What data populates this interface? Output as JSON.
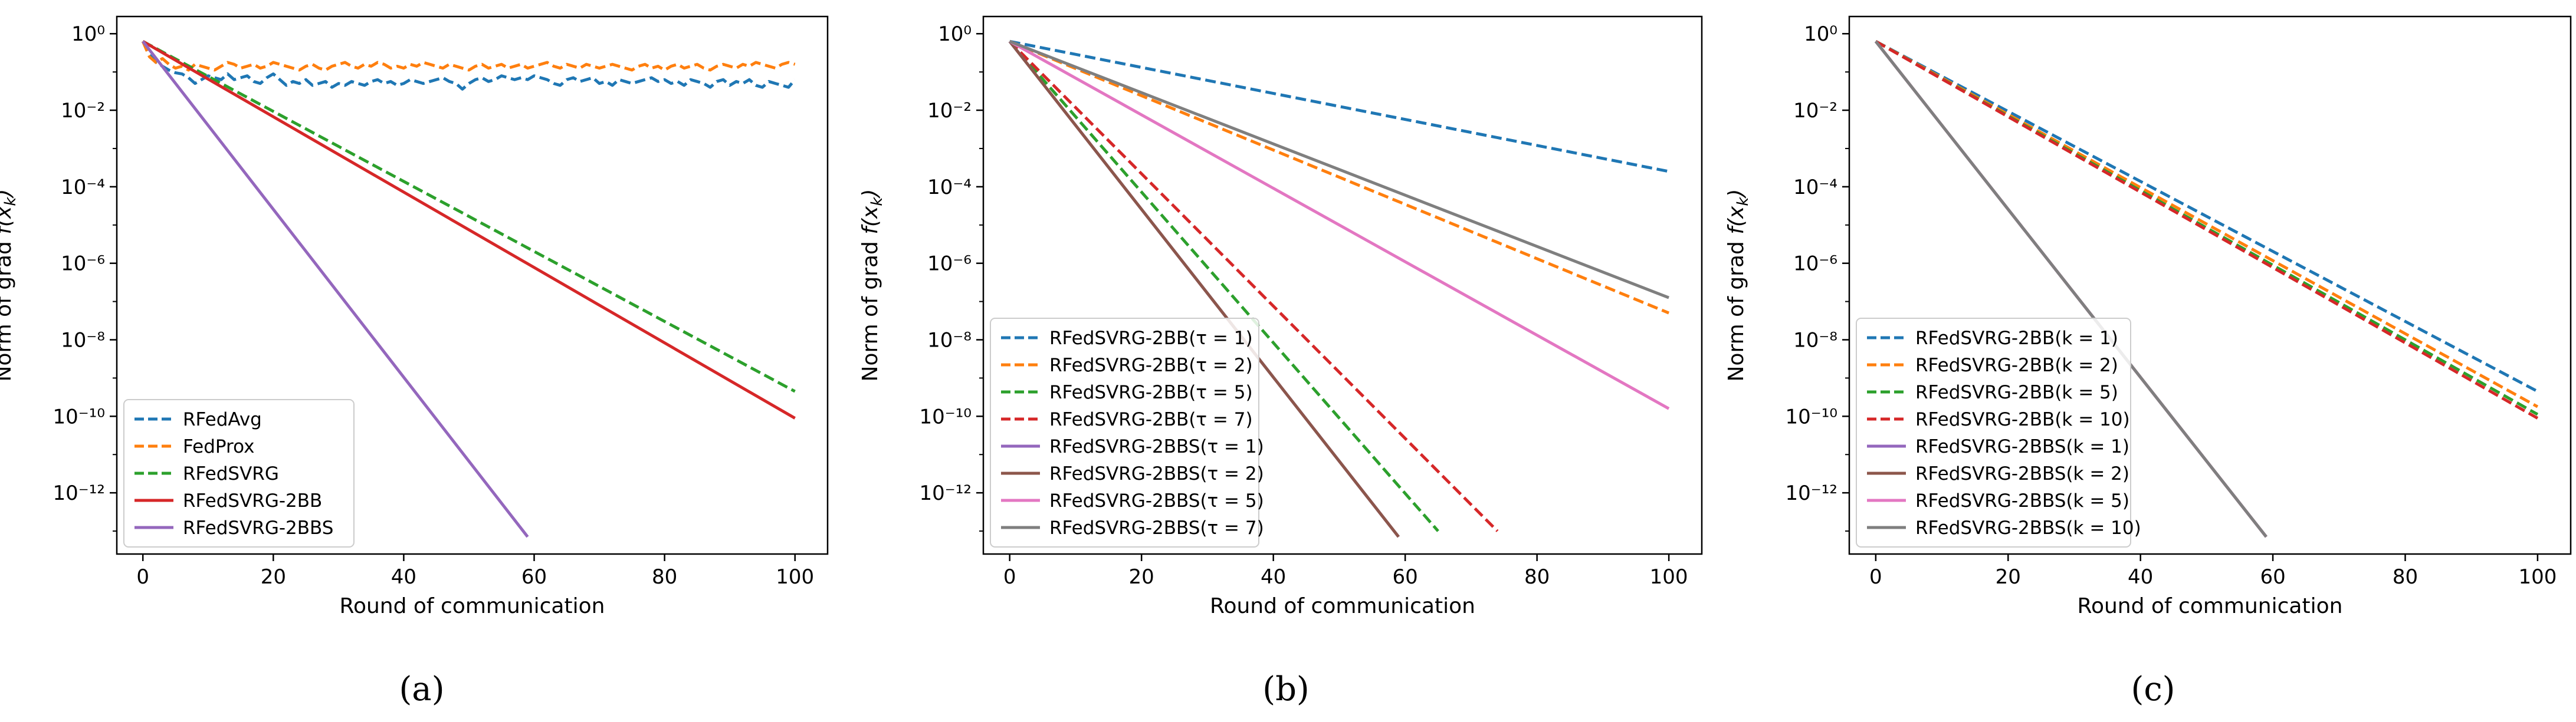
{
  "chart_data": [
    {
      "type": "line",
      "panel_label": "(a)",
      "xlabel": "Round of communication",
      "ylabel": "Norm of grad f(x_k)",
      "ylabel_parts": {
        "base": "Norm of grad ",
        "math": "f(x",
        "sub": "k",
        "close": ")"
      },
      "xlim": [
        -4,
        105
      ],
      "ylim_log10": [
        -13.6,
        0.45
      ],
      "yscale": "log",
      "x_ticks": [
        0,
        20,
        40,
        60,
        80,
        100
      ],
      "y_tick_exponents": [
        0,
        -2,
        -4,
        -6,
        -8,
        -10,
        -12
      ],
      "legend_loc": "lower-left",
      "series": [
        {
          "name": "RFedAvg",
          "color": "#1f77b4",
          "dash": true,
          "x": [
            0,
            1,
            2,
            3,
            4,
            5,
            6,
            7,
            8,
            9,
            10,
            11,
            12,
            13,
            14,
            15,
            16,
            17,
            18,
            19,
            20,
            21,
            22,
            23,
            24,
            25,
            26,
            27,
            28,
            29,
            30,
            31,
            32,
            33,
            34,
            35,
            36,
            37,
            38,
            39,
            40,
            41,
            42,
            43,
            44,
            45,
            46,
            47,
            48,
            49,
            50,
            51,
            52,
            53,
            54,
            55,
            56,
            57,
            58,
            59,
            60,
            61,
            62,
            63,
            64,
            65,
            66,
            67,
            68,
            69,
            70,
            71,
            72,
            73,
            74,
            75,
            76,
            77,
            78,
            79,
            80,
            81,
            82,
            83,
            84,
            85,
            86,
            87,
            88,
            89,
            90,
            91,
            92,
            93,
            94,
            95,
            96,
            97,
            98,
            99,
            100
          ],
          "log10y": [
            -0.2,
            -0.55,
            -0.75,
            -0.85,
            -0.95,
            -1.02,
            -1.05,
            -1.15,
            -1.3,
            -1.2,
            -1.1,
            -1.15,
            -1.2,
            -1.05,
            -1.2,
            -1.15,
            -1.1,
            -1.25,
            -1.3,
            -1.15,
            -1.05,
            -1.2,
            -1.35,
            -1.25,
            -1.3,
            -1.2,
            -1.35,
            -1.3,
            -1.25,
            -1.4,
            -1.3,
            -1.35,
            -1.25,
            -1.3,
            -1.35,
            -1.25,
            -1.2,
            -1.3,
            -1.25,
            -1.35,
            -1.3,
            -1.2,
            -1.25,
            -1.3,
            -1.25,
            -1.2,
            -1.15,
            -1.25,
            -1.3,
            -1.45,
            -1.3,
            -1.2,
            -1.15,
            -1.25,
            -1.2,
            -1.1,
            -1.15,
            -1.2,
            -1.15,
            -1.2,
            -1.1,
            -1.15,
            -1.2,
            -1.3,
            -1.35,
            -1.2,
            -1.15,
            -1.25,
            -1.2,
            -1.15,
            -1.3,
            -1.25,
            -1.35,
            -1.2,
            -1.25,
            -1.3,
            -1.25,
            -1.2,
            -1.15,
            -1.25,
            -1.2,
            -1.3,
            -1.25,
            -1.35,
            -1.2,
            -1.25,
            -1.3,
            -1.4,
            -1.25,
            -1.2,
            -1.35,
            -1.25,
            -1.3,
            -1.2,
            -1.35,
            -1.4,
            -1.25,
            -1.3,
            -1.35,
            -1.4,
            -1.2
          ]
        },
        {
          "name": "FedProx",
          "color": "#ff7f0e",
          "dash": true,
          "x": [
            0,
            1,
            2,
            3,
            4,
            5,
            6,
            7,
            8,
            9,
            10,
            11,
            12,
            13,
            14,
            15,
            16,
            17,
            18,
            19,
            20,
            21,
            22,
            23,
            24,
            25,
            26,
            27,
            28,
            29,
            30,
            31,
            32,
            33,
            34,
            35,
            36,
            37,
            38,
            39,
            40,
            41,
            42,
            43,
            44,
            45,
            46,
            47,
            48,
            49,
            50,
            51,
            52,
            53,
            54,
            55,
            56,
            57,
            58,
            59,
            60,
            61,
            62,
            63,
            64,
            65,
            66,
            67,
            68,
            69,
            70,
            71,
            72,
            73,
            74,
            75,
            76,
            77,
            78,
            79,
            80,
            81,
            82,
            83,
            84,
            85,
            86,
            87,
            88,
            89,
            90,
            91,
            92,
            93,
            94,
            95,
            96,
            97,
            98,
            99,
            100
          ],
          "log10y": [
            -0.2,
            -0.6,
            -0.75,
            -0.65,
            -0.8,
            -0.9,
            -0.85,
            -0.95,
            -0.8,
            -0.85,
            -0.9,
            -0.95,
            -0.85,
            -0.75,
            -0.8,
            -0.9,
            -0.85,
            -0.8,
            -0.9,
            -0.85,
            -0.75,
            -0.8,
            -0.85,
            -0.9,
            -0.95,
            -0.85,
            -0.8,
            -0.9,
            -0.95,
            -0.85,
            -0.8,
            -0.75,
            -0.85,
            -0.9,
            -0.8,
            -0.85,
            -0.75,
            -0.8,
            -0.9,
            -0.85,
            -0.9,
            -0.8,
            -0.85,
            -0.75,
            -0.8,
            -0.85,
            -0.9,
            -0.8,
            -0.85,
            -0.9,
            -0.95,
            -0.85,
            -0.8,
            -0.9,
            -0.85,
            -0.8,
            -0.9,
            -0.85,
            -0.8,
            -0.9,
            -0.85,
            -0.8,
            -0.75,
            -0.85,
            -0.9,
            -0.8,
            -0.85,
            -0.9,
            -0.8,
            -0.85,
            -0.9,
            -0.85,
            -0.8,
            -0.85,
            -0.9,
            -0.95,
            -0.85,
            -0.8,
            -0.9,
            -0.85,
            -0.95,
            -0.85,
            -0.8,
            -0.9,
            -0.85,
            -0.8,
            -0.9,
            -0.95,
            -0.85,
            -0.8,
            -0.85,
            -0.9,
            -0.8,
            -0.85,
            -0.75,
            -0.8,
            -0.85,
            -0.9,
            -0.8,
            -0.75,
            -0.8
          ]
        },
        {
          "name": "RFedSVRG",
          "color": "#2ca02c",
          "dash": true,
          "x": [
            0,
            100
          ],
          "log10y": [
            -0.2,
            -9.35
          ]
        },
        {
          "name": "RFedSVRG-2BB",
          "color": "#d62728",
          "dash": false,
          "x": [
            0,
            100
          ],
          "log10y": [
            -0.2,
            -10.05
          ]
        },
        {
          "name": "RFedSVRG-2BBS",
          "color": "#9467bd",
          "dash": false,
          "x": [
            0,
            59
          ],
          "log10y": [
            -0.2,
            -13.15
          ]
        }
      ]
    },
    {
      "type": "line",
      "panel_label": "(b)",
      "xlabel": "Round of communication",
      "ylabel": "Norm of grad f(x_k)",
      "ylabel_parts": {
        "base": "Norm of grad ",
        "math": "f(x",
        "sub": "k",
        "close": ")"
      },
      "xlim": [
        -4,
        105
      ],
      "ylim_log10": [
        -13.6,
        0.45
      ],
      "yscale": "log",
      "x_ticks": [
        0,
        20,
        40,
        60,
        80,
        100
      ],
      "y_tick_exponents": [
        0,
        -2,
        -4,
        -6,
        -8,
        -10,
        -12
      ],
      "legend_loc": "lower-left",
      "series": [
        {
          "name": "RFedSVRG-2BB(τ = 1)",
          "color": "#1f77b4",
          "dash": true,
          "x": [
            0,
            100
          ],
          "log10y": [
            -0.2,
            -3.6
          ]
        },
        {
          "name": "RFedSVRG-2BB(τ = 2)",
          "color": "#ff7f0e",
          "dash": true,
          "x": [
            0,
            100
          ],
          "log10y": [
            -0.2,
            -7.3
          ]
        },
        {
          "name": "RFedSVRG-2BB(τ = 5)",
          "color": "#2ca02c",
          "dash": true,
          "x": [
            0,
            65
          ],
          "log10y": [
            -0.2,
            -13.0
          ]
        },
        {
          "name": "RFedSVRG-2BB(τ = 7)",
          "color": "#d62728",
          "dash": true,
          "x": [
            0,
            74
          ],
          "log10y": [
            -0.2,
            -13.0
          ]
        },
        {
          "name": "RFedSVRG-2BBS(τ = 1)",
          "color": "#9467bd",
          "dash": false,
          "x": [
            0,
            59
          ],
          "log10y": [
            -0.2,
            -13.15
          ]
        },
        {
          "name": "RFedSVRG-2BBS(τ = 2)",
          "color": "#8c564b",
          "dash": false,
          "x": [
            0,
            59
          ],
          "log10y": [
            -0.2,
            -13.15
          ]
        },
        {
          "name": "RFedSVRG-2BBS(τ = 5)",
          "color": "#e377c2",
          "dash": false,
          "x": [
            0,
            100
          ],
          "log10y": [
            -0.2,
            -9.8
          ]
        },
        {
          "name": "RFedSVRG-2BBS(τ = 7)",
          "color": "#7f7f7f",
          "dash": false,
          "x": [
            0,
            100
          ],
          "log10y": [
            -0.2,
            -6.9
          ]
        }
      ]
    },
    {
      "type": "line",
      "panel_label": "(c)",
      "xlabel": "Round of communication",
      "ylabel": "Norm of grad f(x_k)",
      "ylabel_parts": {
        "base": "Norm of grad ",
        "math": "f(x",
        "sub": "k",
        "close": ")"
      },
      "xlim": [
        -4,
        105
      ],
      "ylim_log10": [
        -13.6,
        0.45
      ],
      "yscale": "log",
      "x_ticks": [
        0,
        20,
        40,
        60,
        80,
        100
      ],
      "y_tick_exponents": [
        0,
        -2,
        -4,
        -6,
        -8,
        -10,
        -12
      ],
      "legend_loc": "lower-left",
      "series": [
        {
          "name": "RFedSVRG-2BB(k = 1)",
          "color": "#1f77b4",
          "dash": true,
          "x": [
            0,
            100
          ],
          "log10y": [
            -0.2,
            -9.35
          ]
        },
        {
          "name": "RFedSVRG-2BB(k = 2)",
          "color": "#ff7f0e",
          "dash": true,
          "x": [
            0,
            100
          ],
          "log10y": [
            -0.2,
            -9.75
          ]
        },
        {
          "name": "RFedSVRG-2BB(k = 5)",
          "color": "#2ca02c",
          "dash": true,
          "x": [
            0,
            100
          ],
          "log10y": [
            -0.2,
            -9.95
          ]
        },
        {
          "name": "RFedSVRG-2BB(k = 10)",
          "color": "#d62728",
          "dash": true,
          "x": [
            0,
            100
          ],
          "log10y": [
            -0.2,
            -10.05
          ]
        },
        {
          "name": "RFedSVRG-2BBS(k = 1)",
          "color": "#9467bd",
          "dash": false,
          "x": [
            0,
            59
          ],
          "log10y": [
            -0.2,
            -13.15
          ]
        },
        {
          "name": "RFedSVRG-2BBS(k = 2)",
          "color": "#8c564b",
          "dash": false,
          "x": [
            0,
            59
          ],
          "log10y": [
            -0.2,
            -13.15
          ]
        },
        {
          "name": "RFedSVRG-2BBS(k = 5)",
          "color": "#e377c2",
          "dash": false,
          "x": [
            0,
            59
          ],
          "log10y": [
            -0.2,
            -13.15
          ]
        },
        {
          "name": "RFedSVRG-2BBS(k = 10)",
          "color": "#7f7f7f",
          "dash": false,
          "x": [
            0,
            59
          ],
          "log10y": [
            -0.2,
            -13.15
          ]
        }
      ]
    }
  ]
}
